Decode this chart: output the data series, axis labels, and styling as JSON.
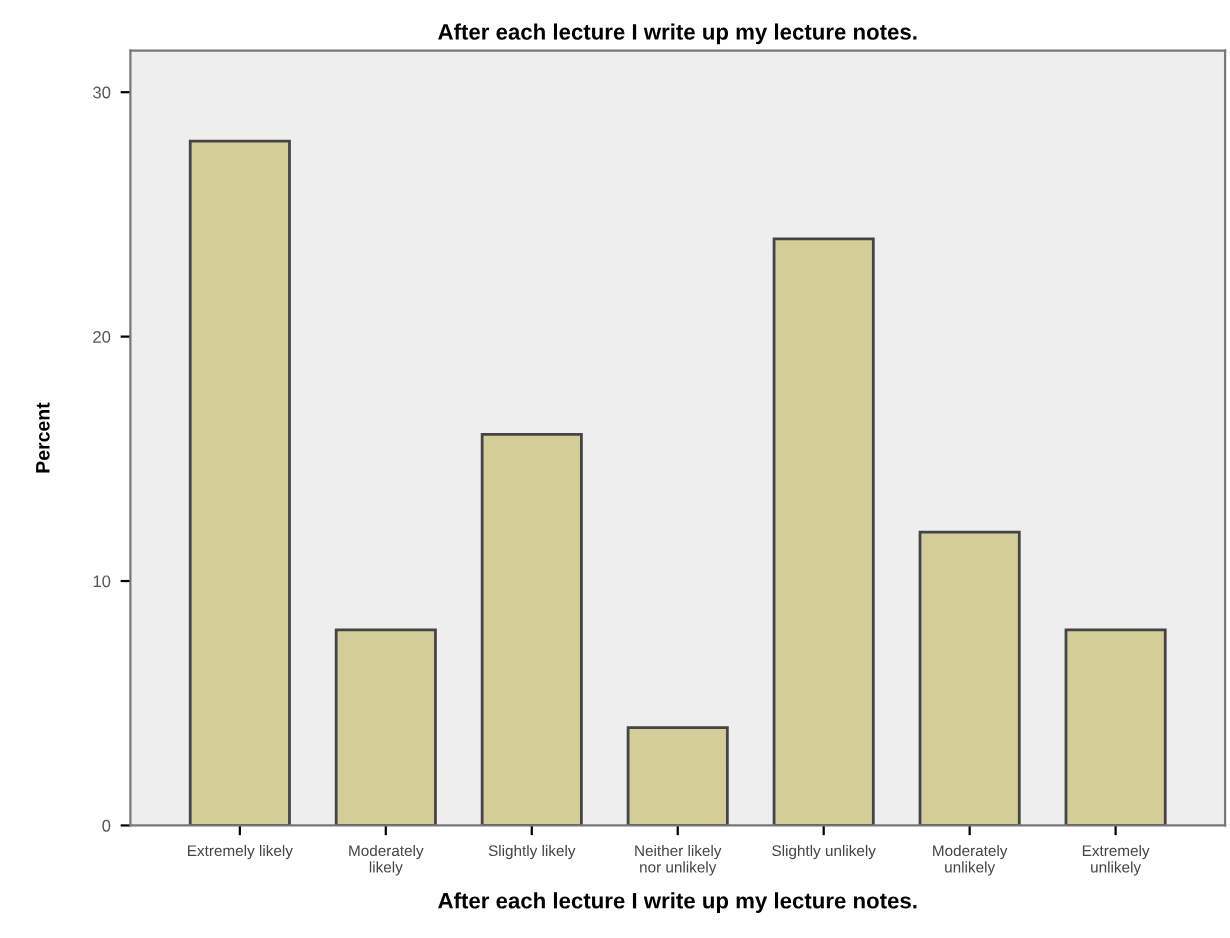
{
  "chart_data": {
    "type": "bar",
    "title": "After each lecture I write up my lecture notes.",
    "xlabel": "After each lecture I write up my lecture notes.",
    "ylabel": "Percent",
    "categories": [
      "Extremely likely",
      "Moderately\nlikely",
      "Slightly likely",
      "Neither likely\nnor unlikely",
      "Slightly unlikely",
      "Moderately\nunlikely",
      "Extremely\nunlikely"
    ],
    "values": [
      28,
      8,
      16,
      4,
      24,
      12,
      8
    ],
    "color": "#d3ce98",
    "ylim": [
      0,
      31.7
    ],
    "yticks": [
      0,
      10,
      20,
      30
    ],
    "grid": false,
    "legend": false
  }
}
